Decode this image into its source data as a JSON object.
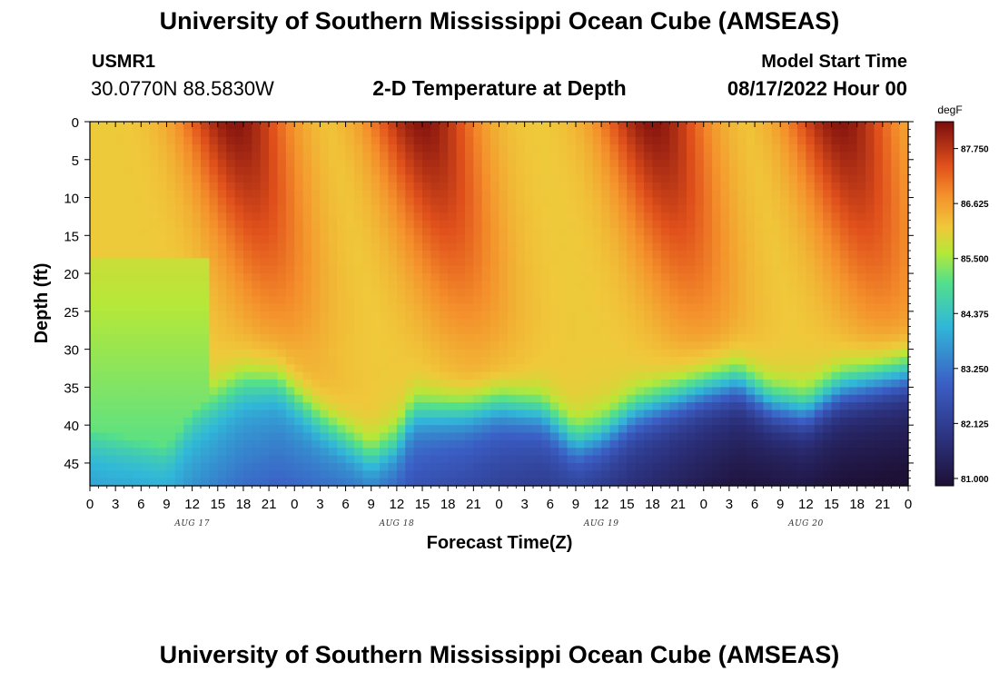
{
  "header": {
    "title": "University of Southern Mississippi Ocean Cube (AMSEAS)",
    "station_id": "USMR1",
    "station_coords": "30.0770N  88.5830W",
    "plot_title": "2-D Temperature at Depth",
    "start_label": "Model Start Time",
    "start_value": "08/17/2022 Hour 00"
  },
  "footer": {
    "title": "University of Southern Mississippi Ocean Cube (AMSEAS)"
  },
  "chart_data": {
    "type": "heatmap",
    "title": "2-D Temperature at Depth",
    "xlabel": "Forecast Time(Z)",
    "ylabel": "Depth (ft)",
    "x_ticks": [
      "0",
      "3",
      "6",
      "9",
      "12",
      "15",
      "18",
      "21",
      "0",
      "3",
      "6",
      "9",
      "12",
      "15",
      "18",
      "21",
      "0",
      "3",
      "6",
      "9",
      "12",
      "15",
      "18",
      "21",
      "0",
      "3",
      "6",
      "9",
      "12",
      "15",
      "18",
      "21",
      "0"
    ],
    "x_range_hours": [
      0,
      96
    ],
    "day_labels": [
      {
        "label": "AUG 17",
        "hour": 12
      },
      {
        "label": "AUG 18",
        "hour": 36
      },
      {
        "label": "AUG 19",
        "hour": 60
      },
      {
        "label": "AUG 20",
        "hour": 84
      }
    ],
    "y_ticks": [
      0,
      5,
      10,
      15,
      20,
      25,
      30,
      35,
      40,
      45
    ],
    "y_range_ft": [
      0,
      48
    ],
    "colorbar": {
      "unit": "degF",
      "ticks": [
        "81.000",
        "82.125",
        "83.250",
        "84.375",
        "85.500",
        "86.625",
        "87.750"
      ],
      "range": [
        80.85,
        88.3
      ]
    },
    "thermocline_depth_ft": [
      [
        0,
        40
      ],
      [
        9,
        42
      ],
      [
        12,
        38
      ],
      [
        18,
        34
      ],
      [
        22,
        34
      ],
      [
        27,
        39
      ],
      [
        33,
        44
      ],
      [
        36,
        42
      ],
      [
        38,
        38
      ],
      [
        44,
        38
      ],
      [
        48,
        37
      ],
      [
        53,
        38
      ],
      [
        57,
        42
      ],
      [
        60,
        41
      ],
      [
        64,
        38
      ],
      [
        72,
        35
      ],
      [
        76,
        34
      ],
      [
        80,
        37
      ],
      [
        84,
        38
      ],
      [
        88,
        35
      ],
      [
        92,
        34
      ],
      [
        96,
        33
      ]
    ],
    "warm_band_centers_hours": [
      20,
      42,
      69,
      91
    ],
    "surface_temp_range_degF": [
      86.0,
      88.3
    ],
    "deep_temp_range_degF": [
      81.0,
      84.5
    ]
  }
}
